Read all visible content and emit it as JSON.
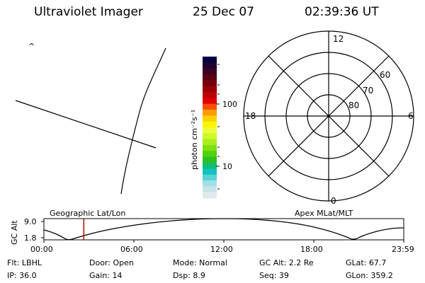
{
  "header": {
    "instrument": "Ultraviolet Imager",
    "date": "25 Dec 07",
    "time": "02:39:36 UT"
  },
  "image_panel": {
    "corner_mark": "^"
  },
  "colorbar": {
    "unit_label": "photon cm⁻²s⁻¹",
    "ticks": [
      "100",
      "10"
    ],
    "colors": [
      "#000040",
      "#200030",
      "#3c0020",
      "#5a0014",
      "#78000e",
      "#980008",
      "#bc0004",
      "#e00000",
      "#f45000",
      "#fc9c00",
      "#fcd200",
      "#fcf400",
      "#eefc3c",
      "#cef82c",
      "#a8ee1c",
      "#7ce010",
      "#54d00c",
      "#2cc020",
      "#14be72",
      "#10c2c0",
      "#5ad2d8",
      "#a0e0e6",
      "#c8e4e8",
      "#e0eaec"
    ]
  },
  "polar_plot": {
    "mlt_labels": [
      "12",
      "18",
      "6",
      "0"
    ],
    "lat_labels": [
      "60",
      "70",
      "80"
    ]
  },
  "timeline": {
    "left_title": "Geographic Lat/Lon",
    "right_title": "Apex  MLat/MLT",
    "axis_title": "GC Alt",
    "y_ticks": [
      "9.0",
      "1.8"
    ],
    "x_ticks": [
      "00:00",
      "06:00",
      "12:00",
      "18:00",
      "23:59"
    ],
    "marker_time_hours": 2.66,
    "marker_color": "#c00000"
  },
  "info": {
    "filter": "Flt: LBHL",
    "ip": "IP: 36.0",
    "door": "Door: Open",
    "gain": "Gain: 14",
    "mode": "Mode: Normal",
    "dsp": "Dsp:     8.9",
    "gc_alt": "GC Alt: 2.2 Re",
    "seq": "Seq: 39",
    "glat": "GLat:  67.7",
    "glon": "GLon: 359.2"
  }
}
